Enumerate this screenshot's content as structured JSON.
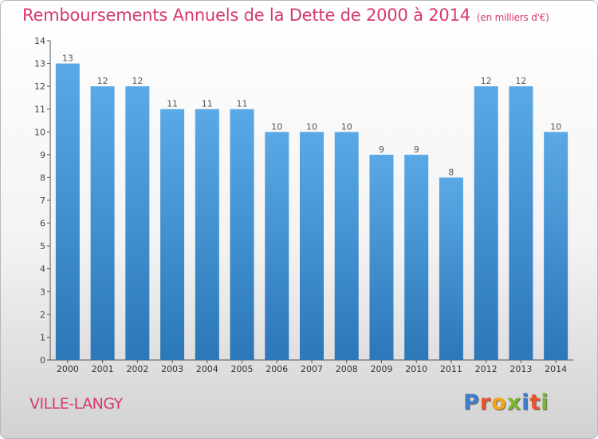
{
  "title": "Remboursements Annuels de la Dette de 2000 à 2014",
  "subtitle": "(en milliers d'€)",
  "commune": "VILLE-LANGY",
  "brand": {
    "letters": [
      "P",
      "r",
      "o",
      "x",
      "i",
      "t",
      "i"
    ],
    "colors": [
      "#3e7dc8",
      "#e8542d",
      "#f0a419",
      "#79b52f",
      "#3e7dc8",
      "#e8542d",
      "#79b52f"
    ]
  },
  "colors": {
    "accent": "#d63a6b",
    "bar_light": "#5aa9e6",
    "bar_dark": "#2b77b8"
  },
  "chart_data": {
    "type": "bar",
    "title": "Remboursements Annuels de la Dette de 2000 à 2014",
    "xlabel": "",
    "ylabel": "",
    "categories": [
      "2000",
      "2001",
      "2002",
      "2003",
      "2004",
      "2005",
      "2006",
      "2007",
      "2008",
      "2009",
      "2010",
      "2011",
      "2012",
      "2013",
      "2014"
    ],
    "values": [
      13,
      12,
      12,
      11,
      11,
      11,
      10,
      10,
      10,
      9,
      9,
      8,
      12,
      12,
      10
    ],
    "labels": [
      "13",
      "12",
      "12",
      "11",
      "11",
      "11",
      "10",
      "10",
      "10",
      "9",
      "9",
      "8",
      "12",
      "12",
      "10"
    ],
    "ylim": [
      0,
      14
    ],
    "yticks": [
      0,
      1,
      2,
      3,
      4,
      5,
      6,
      7,
      8,
      9,
      10,
      11,
      12,
      13,
      14
    ],
    "grid": false
  }
}
